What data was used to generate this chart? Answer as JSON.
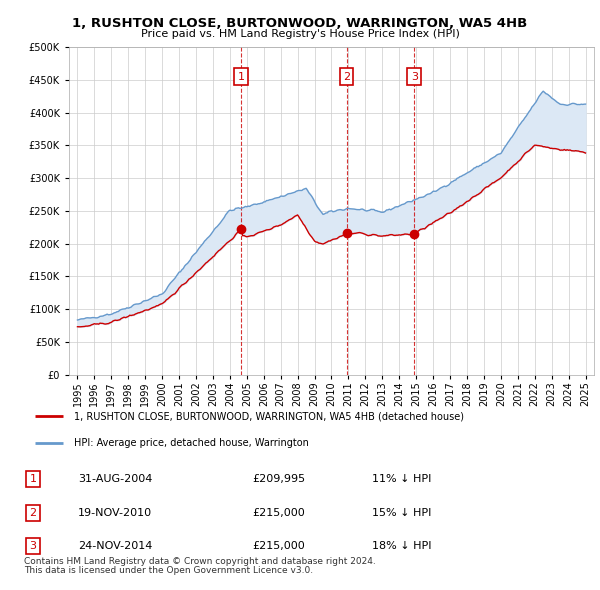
{
  "title": "1, RUSHTON CLOSE, BURTONWOOD, WARRINGTON, WA5 4HB",
  "subtitle": "Price paid vs. HM Land Registry's House Price Index (HPI)",
  "legend_label_red": "1, RUSHTON CLOSE, BURTONWOOD, WARRINGTON, WA5 4HB (detached house)",
  "legend_label_blue": "HPI: Average price, detached house, Warrington",
  "transactions": [
    {
      "num": 1,
      "date": "31-AUG-2004",
      "price": "£209,995",
      "hpi": "11% ↓ HPI",
      "x_year": 2004.67
    },
    {
      "num": 2,
      "date": "19-NOV-2010",
      "price": "£215,000",
      "hpi": "15% ↓ HPI",
      "x_year": 2010.89
    },
    {
      "num": 3,
      "date": "24-NOV-2014",
      "price": "£215,000",
      "hpi": "18% ↓ HPI",
      "x_year": 2014.89
    }
  ],
  "footer1": "Contains HM Land Registry data © Crown copyright and database right 2024.",
  "footer2": "This data is licensed under the Open Government Licence v3.0.",
  "bg_color": "#ffffff",
  "plot_bg": "#ffffff",
  "fill_color": "#dce8f5",
  "grid_color": "#cccccc",
  "red_color": "#cc0000",
  "blue_color": "#6699cc",
  "ylim": [
    0,
    500000
  ],
  "yticks": [
    0,
    50000,
    100000,
    150000,
    200000,
    250000,
    300000,
    350000,
    400000,
    450000,
    500000
  ],
  "xlim_start": 1994.5,
  "xlim_end": 2025.5,
  "xticks": [
    1995,
    1996,
    1997,
    1998,
    1999,
    2000,
    2001,
    2002,
    2003,
    2004,
    2005,
    2006,
    2007,
    2008,
    2009,
    2010,
    2011,
    2012,
    2013,
    2014,
    2015,
    2016,
    2017,
    2018,
    2019,
    2020,
    2021,
    2022,
    2023,
    2024,
    2025
  ]
}
